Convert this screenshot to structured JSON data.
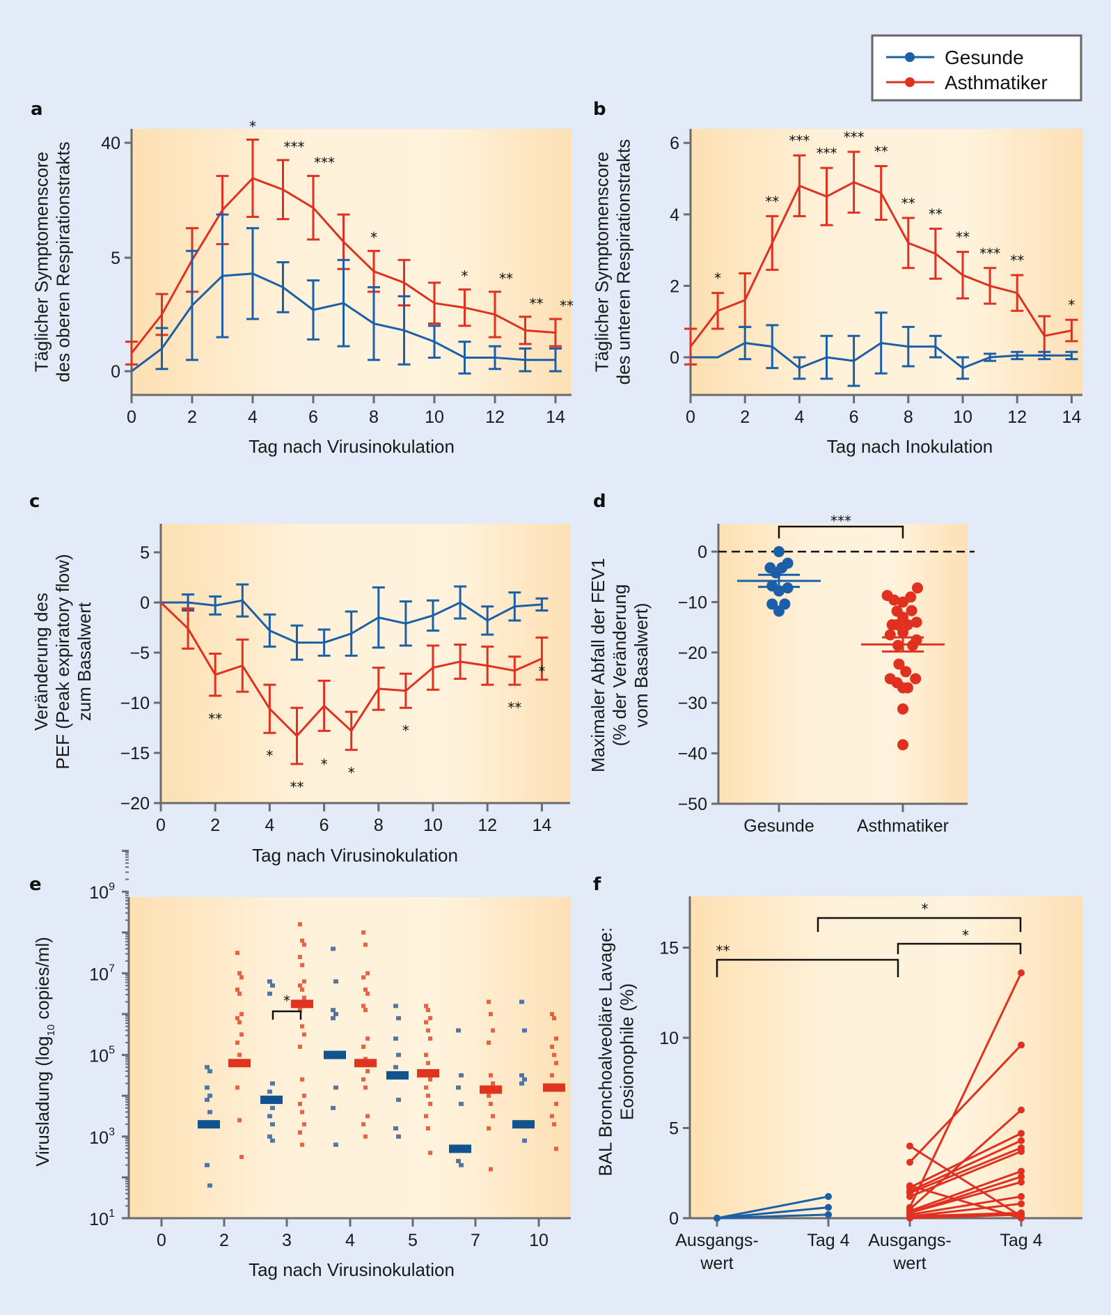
{
  "colors": {
    "healthy": "#1a5fa8",
    "asthma": "#e03020",
    "axis": "#6b6b6b",
    "background": "#e3eaf8"
  },
  "legend": {
    "items": [
      {
        "label": "Gesunde",
        "color": "#1a5fa8"
      },
      {
        "label": "Asthmatiker",
        "color": "#e03020"
      }
    ],
    "placement": "top-right"
  },
  "chart_data": [
    {
      "id": "a",
      "type": "line",
      "panel_label": "a",
      "xlabel": "Tag nach Virusinokulation",
      "ylabel_lines": [
        "Täglicher Symptomenscore",
        "des oberen Respirationstrakts"
      ],
      "x_ticks": [
        "0",
        "2",
        "4",
        "6",
        "8",
        "10",
        "12",
        "14"
      ],
      "y_ticks": [
        "0",
        "5",
        "40"
      ],
      "y_axis_note": "broken scale: 0, 5, 40",
      "x": [
        0,
        1,
        2,
        3,
        4,
        5,
        6,
        7,
        8,
        9,
        10,
        11,
        12,
        13,
        14
      ],
      "series": [
        {
          "name": "Asthmatiker",
          "color": "#e03020",
          "values": [
            0.8,
            2.5,
            4.9,
            7.1,
            8.5,
            8.0,
            7.2,
            5.7,
            4.4,
            3.9,
            3.0,
            2.8,
            2.5,
            1.8,
            1.7
          ],
          "err": [
            0.5,
            0.9,
            1.4,
            1.5,
            1.7,
            1.3,
            1.4,
            1.2,
            0.9,
            1.0,
            0.9,
            0.8,
            1.0,
            0.6,
            0.6
          ]
        },
        {
          "name": "Gesunde",
          "color": "#1a5fa8",
          "values": [
            0.0,
            1.0,
            2.9,
            4.2,
            4.3,
            3.7,
            2.7,
            3.0,
            2.1,
            1.8,
            1.3,
            0.6,
            0.6,
            0.5,
            0.5
          ],
          "err": [
            0.0,
            0.9,
            2.4,
            2.7,
            2.0,
            1.1,
            1.3,
            1.9,
            1.6,
            1.5,
            0.7,
            0.7,
            0.5,
            0.5,
            0.5
          ]
        }
      ],
      "significance": [
        {
          "x": 4,
          "label": "*"
        },
        {
          "x": 5,
          "label": "***"
        },
        {
          "x": 6,
          "label": "***"
        },
        {
          "x": 8,
          "label": "*"
        },
        {
          "x": 11,
          "label": "*"
        },
        {
          "x": 12,
          "label": "**"
        },
        {
          "x": 13,
          "label": "**"
        },
        {
          "x": 14,
          "label": "**"
        }
      ]
    },
    {
      "id": "b",
      "type": "line",
      "panel_label": "b",
      "xlabel": "Tag nach Inokulation",
      "ylabel_lines": [
        "Täglicher Symptomenscore",
        "des unteren Respirationstrakts"
      ],
      "x_ticks": [
        "0",
        "2",
        "4",
        "6",
        "8",
        "10",
        "12",
        "14"
      ],
      "y_ticks": [
        "0",
        "2",
        "4",
        "6"
      ],
      "ylim": [
        -1,
        6.4
      ],
      "x": [
        0,
        1,
        2,
        3,
        4,
        5,
        6,
        7,
        8,
        9,
        10,
        11,
        12,
        13,
        14
      ],
      "series": [
        {
          "name": "Asthmatiker",
          "color": "#e03020",
          "values": [
            0.3,
            1.3,
            1.6,
            3.2,
            4.8,
            4.5,
            4.9,
            4.6,
            3.2,
            2.9,
            2.3,
            2.0,
            1.8,
            0.6,
            0.75
          ],
          "err": [
            0.5,
            0.5,
            0.75,
            0.75,
            0.85,
            0.8,
            0.85,
            0.75,
            0.7,
            0.7,
            0.65,
            0.5,
            0.5,
            0.55,
            0.3
          ]
        },
        {
          "name": "Gesunde",
          "color": "#1a5fa8",
          "values": [
            0.0,
            0.0,
            0.4,
            0.3,
            -0.3,
            0.0,
            -0.1,
            0.4,
            0.3,
            0.3,
            -0.3,
            0.0,
            0.05,
            0.05,
            0.05
          ],
          "err": [
            0.0,
            0.0,
            0.45,
            0.6,
            0.3,
            0.6,
            0.7,
            0.85,
            0.55,
            0.3,
            0.3,
            0.1,
            0.1,
            0.1,
            0.1
          ]
        }
      ],
      "significance": [
        {
          "x": 1,
          "label": "*"
        },
        {
          "x": 3,
          "label": "**"
        },
        {
          "x": 4,
          "label": "***"
        },
        {
          "x": 5,
          "label": "***"
        },
        {
          "x": 6,
          "label": "***"
        },
        {
          "x": 7,
          "label": "**"
        },
        {
          "x": 8,
          "label": "**"
        },
        {
          "x": 9,
          "label": "**"
        },
        {
          "x": 10,
          "label": "**"
        },
        {
          "x": 11,
          "label": "***"
        },
        {
          "x": 12,
          "label": "**"
        },
        {
          "x": 14,
          "label": "*"
        }
      ]
    },
    {
      "id": "c",
      "type": "line",
      "panel_label": "c",
      "xlabel": "Tag nach Virusinokulation",
      "ylabel_lines": [
        "Veränderung des",
        "PEF (Peak expiratory flow)",
        "zum Basalwert"
      ],
      "x_ticks": [
        "0",
        "2",
        "4",
        "6",
        "8",
        "10",
        "12",
        "14"
      ],
      "y_ticks": [
        "5",
        "0",
        "−5",
        "−10",
        "−15",
        "−20"
      ],
      "ylim": [
        -20,
        9.5
      ],
      "x": [
        0,
        1,
        2,
        3,
        4,
        5,
        6,
        7,
        8,
        9,
        10,
        11,
        12,
        13,
        14
      ],
      "series": [
        {
          "name": "Gesunde",
          "color": "#1a5fa8",
          "values": [
            0.0,
            0.0,
            -0.3,
            0.2,
            -2.8,
            -4.0,
            -4.0,
            -3.1,
            -1.5,
            -2.1,
            -1.3,
            0.0,
            -1.8,
            -0.4,
            -0.2
          ],
          "err": [
            0.0,
            0.8,
            0.9,
            1.6,
            1.6,
            1.7,
            1.3,
            2.2,
            3.0,
            2.2,
            1.5,
            1.6,
            1.4,
            1.4,
            0.6
          ]
        },
        {
          "name": "Asthmatiker",
          "color": "#e03020",
          "values": [
            0.0,
            -2.6,
            -7.2,
            -6.3,
            -10.6,
            -13.3,
            -10.3,
            -12.8,
            -8.6,
            -8.8,
            -6.5,
            -5.9,
            -6.3,
            -6.8,
            -5.6
          ],
          "err": [
            0.0,
            2.0,
            2.1,
            2.6,
            2.4,
            2.8,
            2.5,
            1.9,
            2.1,
            1.7,
            2.2,
            1.7,
            1.9,
            1.4,
            2.1
          ]
        }
      ],
      "significance": [
        {
          "x": 2,
          "label": "**"
        },
        {
          "x": 4,
          "label": "*"
        },
        {
          "x": 5,
          "label": "**"
        },
        {
          "x": 6,
          "label": "*"
        },
        {
          "x": 7,
          "label": "*"
        },
        {
          "x": 9,
          "label": "*"
        },
        {
          "x": 13,
          "label": "**"
        },
        {
          "x": 14,
          "label": "*"
        }
      ]
    },
    {
      "id": "d",
      "type": "scatter",
      "panel_label": "d",
      "categories": [
        "Gesunde",
        "Asthmatiker"
      ],
      "ylabel_lines": [
        "Maximaler Abfall der FEV1",
        "(% der Veränderung",
        "vom Basalwert)"
      ],
      "y_ticks": [
        "0",
        "−10",
        "−20",
        "−30",
        "−40",
        "−50"
      ],
      "ylim": [
        -50,
        7
      ],
      "reference_line": 0,
      "groups": [
        {
          "name": "Gesunde",
          "color": "#1a5fa8",
          "points": [
            {
              "dx": 0,
              "y": 0.0
            },
            {
              "dx": -0.9,
              "y": -3.2
            },
            {
              "dx": 0.9,
              "y": -2.3
            },
            {
              "dx": 0.3,
              "y": -3.2
            },
            {
              "dx": -0.3,
              "y": -4.2
            },
            {
              "dx": -0.7,
              "y": -6.8
            },
            {
              "dx": 0.9,
              "y": -7.2
            },
            {
              "dx": 0,
              "y": -7.8
            },
            {
              "dx": -0.7,
              "y": -10.4
            },
            {
              "dx": 0.6,
              "y": -10.4
            },
            {
              "dx": 0,
              "y": -11.8
            }
          ],
          "mean": -5.8,
          "sem": 1.2
        },
        {
          "name": "Asthmatiker",
          "color": "#e03020",
          "points": [
            {
              "dx": 1.5,
              "y": -7.2
            },
            {
              "dx": -1.6,
              "y": -8.7
            },
            {
              "dx": -0.9,
              "y": -9.6
            },
            {
              "dx": 0,
              "y": -10.0
            },
            {
              "dx": 0.8,
              "y": -9.0
            },
            {
              "dx": -0.6,
              "y": -11.8
            },
            {
              "dx": 0.9,
              "y": -11.7
            },
            {
              "dx": 0,
              "y": -13.0
            },
            {
              "dx": -1.1,
              "y": -14.5
            },
            {
              "dx": -0.6,
              "y": -14.5
            },
            {
              "dx": 0.5,
              "y": -14.5
            },
            {
              "dx": 1.4,
              "y": -14.0
            },
            {
              "dx": -1.3,
              "y": -16.5
            },
            {
              "dx": 0,
              "y": -16.0
            },
            {
              "dx": 1.4,
              "y": -17.5
            },
            {
              "dx": -0.5,
              "y": -18.6
            },
            {
              "dx": 1.0,
              "y": -18.6
            },
            {
              "dx": -0.4,
              "y": -22.3
            },
            {
              "dx": 0.3,
              "y": -23.8
            },
            {
              "dx": -1.3,
              "y": -25.2
            },
            {
              "dx": -0.6,
              "y": -26.0
            },
            {
              "dx": 1.3,
              "y": -25.2
            },
            {
              "dx": 0,
              "y": -27.0
            },
            {
              "dx": 0.5,
              "y": -27.0
            },
            {
              "dx": 0,
              "y": -31.2
            },
            {
              "dx": 0,
              "y": -38.3
            }
          ],
          "mean": -18.4,
          "sem": 1.4
        }
      ],
      "significance": [
        {
          "from": "Gesunde",
          "to": "Asthmatiker",
          "label": "***"
        }
      ]
    },
    {
      "id": "e",
      "type": "scatter",
      "panel_label": "e",
      "xlabel": "Tag nach Virusinokulation",
      "ylabel": "Virusladung (log",
      "ylabel_sub": "10",
      "ylabel_end": " copies/ml)",
      "y_scale": "log",
      "ylim_log10": [
        1,
        11
      ],
      "y_ticks": [
        {
          "base": "10",
          "exp": "1"
        },
        {
          "base": "10",
          "exp": "3"
        },
        {
          "base": "10",
          "exp": "5"
        },
        {
          "base": "10",
          "exp": "7"
        },
        {
          "base": "10",
          "exp": "9"
        }
      ],
      "x_ticks": [
        "0",
        "2",
        "3",
        "4",
        "5",
        "7",
        "10"
      ],
      "groups": [
        {
          "day": "2",
          "healthy_median_log": 3.3,
          "healthy_points_log": [
            4.7,
            4.6,
            4.2,
            4.0,
            3.9,
            3.6,
            2.3,
            1.8
          ],
          "asthma_median_log": 4.8,
          "asthma_points_log": [
            7.5,
            7.0,
            6.9,
            6.6,
            6.5,
            6.0,
            5.9,
            5.8,
            5.5,
            5.3,
            5.0,
            4.8,
            4.2,
            3.4,
            2.5
          ]
        },
        {
          "day": "3",
          "healthy_median_log": 3.9,
          "healthy_points_log": [
            6.8,
            6.7,
            6.5,
            4.3,
            4.1,
            3.7,
            3.5,
            3.3,
            3.0,
            2.9
          ],
          "asthma_median_log": 6.25,
          "asthma_points_log": [
            8.2,
            7.8,
            7.7,
            7.4,
            7.2,
            6.8,
            6.7,
            6.6,
            6.4,
            6.1,
            5.7,
            5.5,
            5.2,
            4.4,
            4.0,
            3.8,
            3.6,
            3.3,
            3.1,
            2.8
          ]
        },
        {
          "day": "4",
          "healthy_median_log": 5.0,
          "healthy_points_log": [
            7.6,
            6.8,
            6.1,
            6.0,
            5.9,
            4.2,
            3.7,
            2.8
          ],
          "asthma_median_log": 4.8,
          "asthma_points_log": [
            8.0,
            7.7,
            7.0,
            6.9,
            6.6,
            6.5,
            6.2,
            6.1,
            5.4,
            5.2,
            4.9,
            4.6,
            4.4,
            4.2,
            3.5,
            3.3,
            3.0
          ]
        },
        {
          "day": "5",
          "healthy_median_log": 4.5,
          "healthy_points_log": [
            6.2,
            5.9,
            5.4,
            5.0,
            4.7,
            3.9,
            3.2,
            3.0
          ],
          "asthma_median_log": 4.55,
          "asthma_points_log": [
            6.2,
            6.1,
            5.9,
            5.8,
            5.6,
            5.4,
            5.0,
            4.8,
            4.4,
            4.2,
            4.0,
            3.8,
            3.5,
            3.2,
            2.6
          ]
        },
        {
          "day": "7",
          "healthy_median_log": 2.7,
          "healthy_points_log": [
            5.6,
            4.5,
            4.2,
            3.8,
            2.4,
            2.3
          ],
          "asthma_median_log": 4.15,
          "asthma_points_log": [
            6.3,
            6.0,
            5.6,
            5.3,
            4.5,
            4.3,
            4.0,
            3.8,
            3.5,
            3.2,
            2.2
          ]
        },
        {
          "day": "10",
          "healthy_median_log": 3.3,
          "healthy_points_log": [
            6.3,
            5.6,
            4.5,
            4.4,
            4.3,
            2.9
          ],
          "asthma_median_log": 4.2,
          "asthma_points_log": [
            6.0,
            5.9,
            5.4,
            5.2,
            5.0,
            4.8,
            4.5,
            4.2,
            3.8,
            3.5,
            3.3,
            2.7
          ]
        }
      ],
      "significance": [
        {
          "day": "3",
          "label": "*"
        }
      ]
    },
    {
      "id": "f",
      "type": "line",
      "panel_label": "f",
      "ylabel_lines": [
        "BAL Bronchoalveoläre Lavage:",
        "Eosionophile (%)"
      ],
      "categories": [
        [
          "Ausgangs-",
          "wert"
        ],
        [
          "Tag 4",
          ""
        ],
        [
          "Ausgangs-",
          "wert"
        ],
        [
          "Tag 4",
          ""
        ]
      ],
      "y_ticks": [
        "0",
        "5",
        "10",
        "15"
      ],
      "ylim": [
        0,
        17.7
      ],
      "healthy_pairs": [
        [
          0,
          1.2
        ],
        [
          0,
          0.6
        ],
        [
          0,
          0.2
        ]
      ],
      "asthma_pairs": [
        [
          4.0,
          0.1
        ],
        [
          3.1,
          9.6
        ],
        [
          1.8,
          0.0
        ],
        [
          1.7,
          4.7
        ],
        [
          1.5,
          4.3
        ],
        [
          1.4,
          3.9
        ],
        [
          1.2,
          3.7
        ],
        [
          0.6,
          13.6
        ],
        [
          0.5,
          6.0
        ],
        [
          0.4,
          2.6
        ],
        [
          0.3,
          2.3
        ],
        [
          0.3,
          2.0
        ],
        [
          0.2,
          1.2
        ],
        [
          0.1,
          0.8
        ],
        [
          0.1,
          0.3
        ],
        [
          0.0,
          0.2
        ]
      ],
      "significance": [
        {
          "from": 0,
          "to": 2,
          "label": "**"
        },
        {
          "from": 1,
          "to": 3,
          "label": "*"
        },
        {
          "from": 2,
          "to": 3,
          "label": "*"
        }
      ]
    }
  ]
}
